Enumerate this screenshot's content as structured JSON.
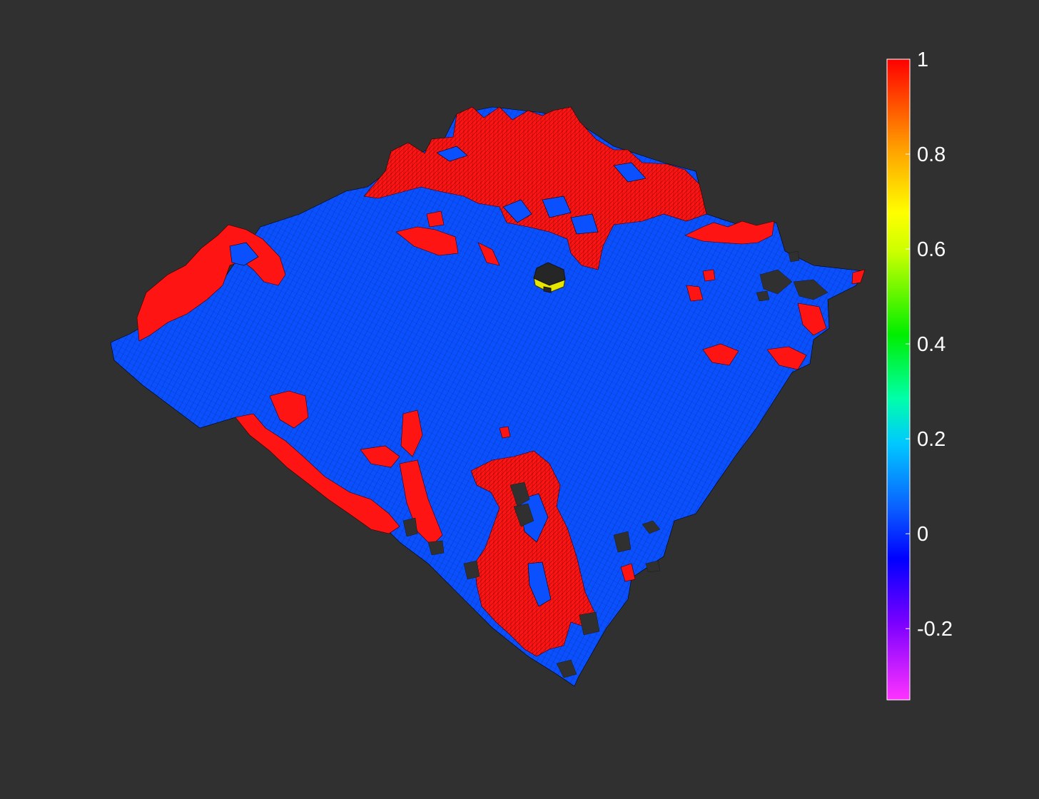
{
  "chart_data": {
    "type": "heatmap",
    "title": "",
    "xlabel": "",
    "ylabel": "",
    "view": "3d-surface",
    "grid": false,
    "background_color": "#303030",
    "colors": {
      "high": "#ff1414",
      "low": "#0a50ff",
      "missing": "#303030",
      "robot_body": "#262626",
      "robot_trim": "#e6e600"
    },
    "colorbar": {
      "placement": "right",
      "colormap": "rainbow",
      "clim": [
        -0.35,
        1.0
      ],
      "ticks": [
        1,
        0.8,
        0.6,
        0.4,
        0.2,
        0,
        -0.2
      ],
      "tick_labels": [
        "1",
        "0.8",
        "0.6",
        "0.4",
        "0.2",
        "0",
        "-0.2"
      ]
    },
    "surface_values": [
      0,
      1
    ]
  }
}
